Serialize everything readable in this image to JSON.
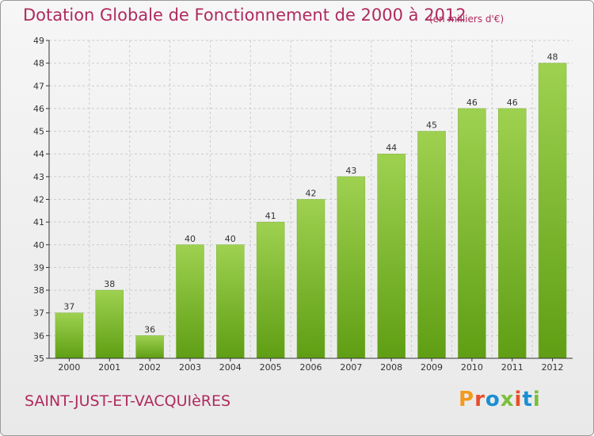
{
  "header": {
    "title": "Dotation Globale de Fonctionnement de 2000 à 2012",
    "unit": "(en milliers d'€)"
  },
  "footer": {
    "commune": "SAINT-JUST-ET-VACQUIèRES",
    "logo_text": "Proxiti",
    "logo_colors": [
      "#f39a1e",
      "#e84e2b",
      "#1a8fd1",
      "#7bbf3a",
      "#e84e2b",
      "#1a8fd1",
      "#7bbf3a"
    ]
  },
  "colors": {
    "bar_top": "#9ed150",
    "bar_bottom": "#5f9e14",
    "axis": "#333333",
    "grid": "#cccccc",
    "text": "#333333",
    "accent": "#b02a5e"
  },
  "chart_data": {
    "type": "bar",
    "categories": [
      "2000",
      "2001",
      "2002",
      "2003",
      "2004",
      "2005",
      "2006",
      "2007",
      "2008",
      "2009",
      "2010",
      "2011",
      "2012"
    ],
    "values": [
      37,
      38,
      36,
      40,
      40,
      41,
      42,
      43,
      44,
      45,
      46,
      46,
      48
    ],
    "data_labels": [
      "37",
      "38",
      "36",
      "40",
      "40",
      "41",
      "42",
      "43",
      "44",
      "45",
      "46",
      "46",
      "48"
    ],
    "ylim": [
      35,
      49
    ],
    "yticks": [
      35,
      36,
      37,
      38,
      39,
      40,
      41,
      42,
      43,
      44,
      45,
      46,
      47,
      48,
      49
    ],
    "xlabel": "",
    "ylabel": "",
    "grid": true
  }
}
